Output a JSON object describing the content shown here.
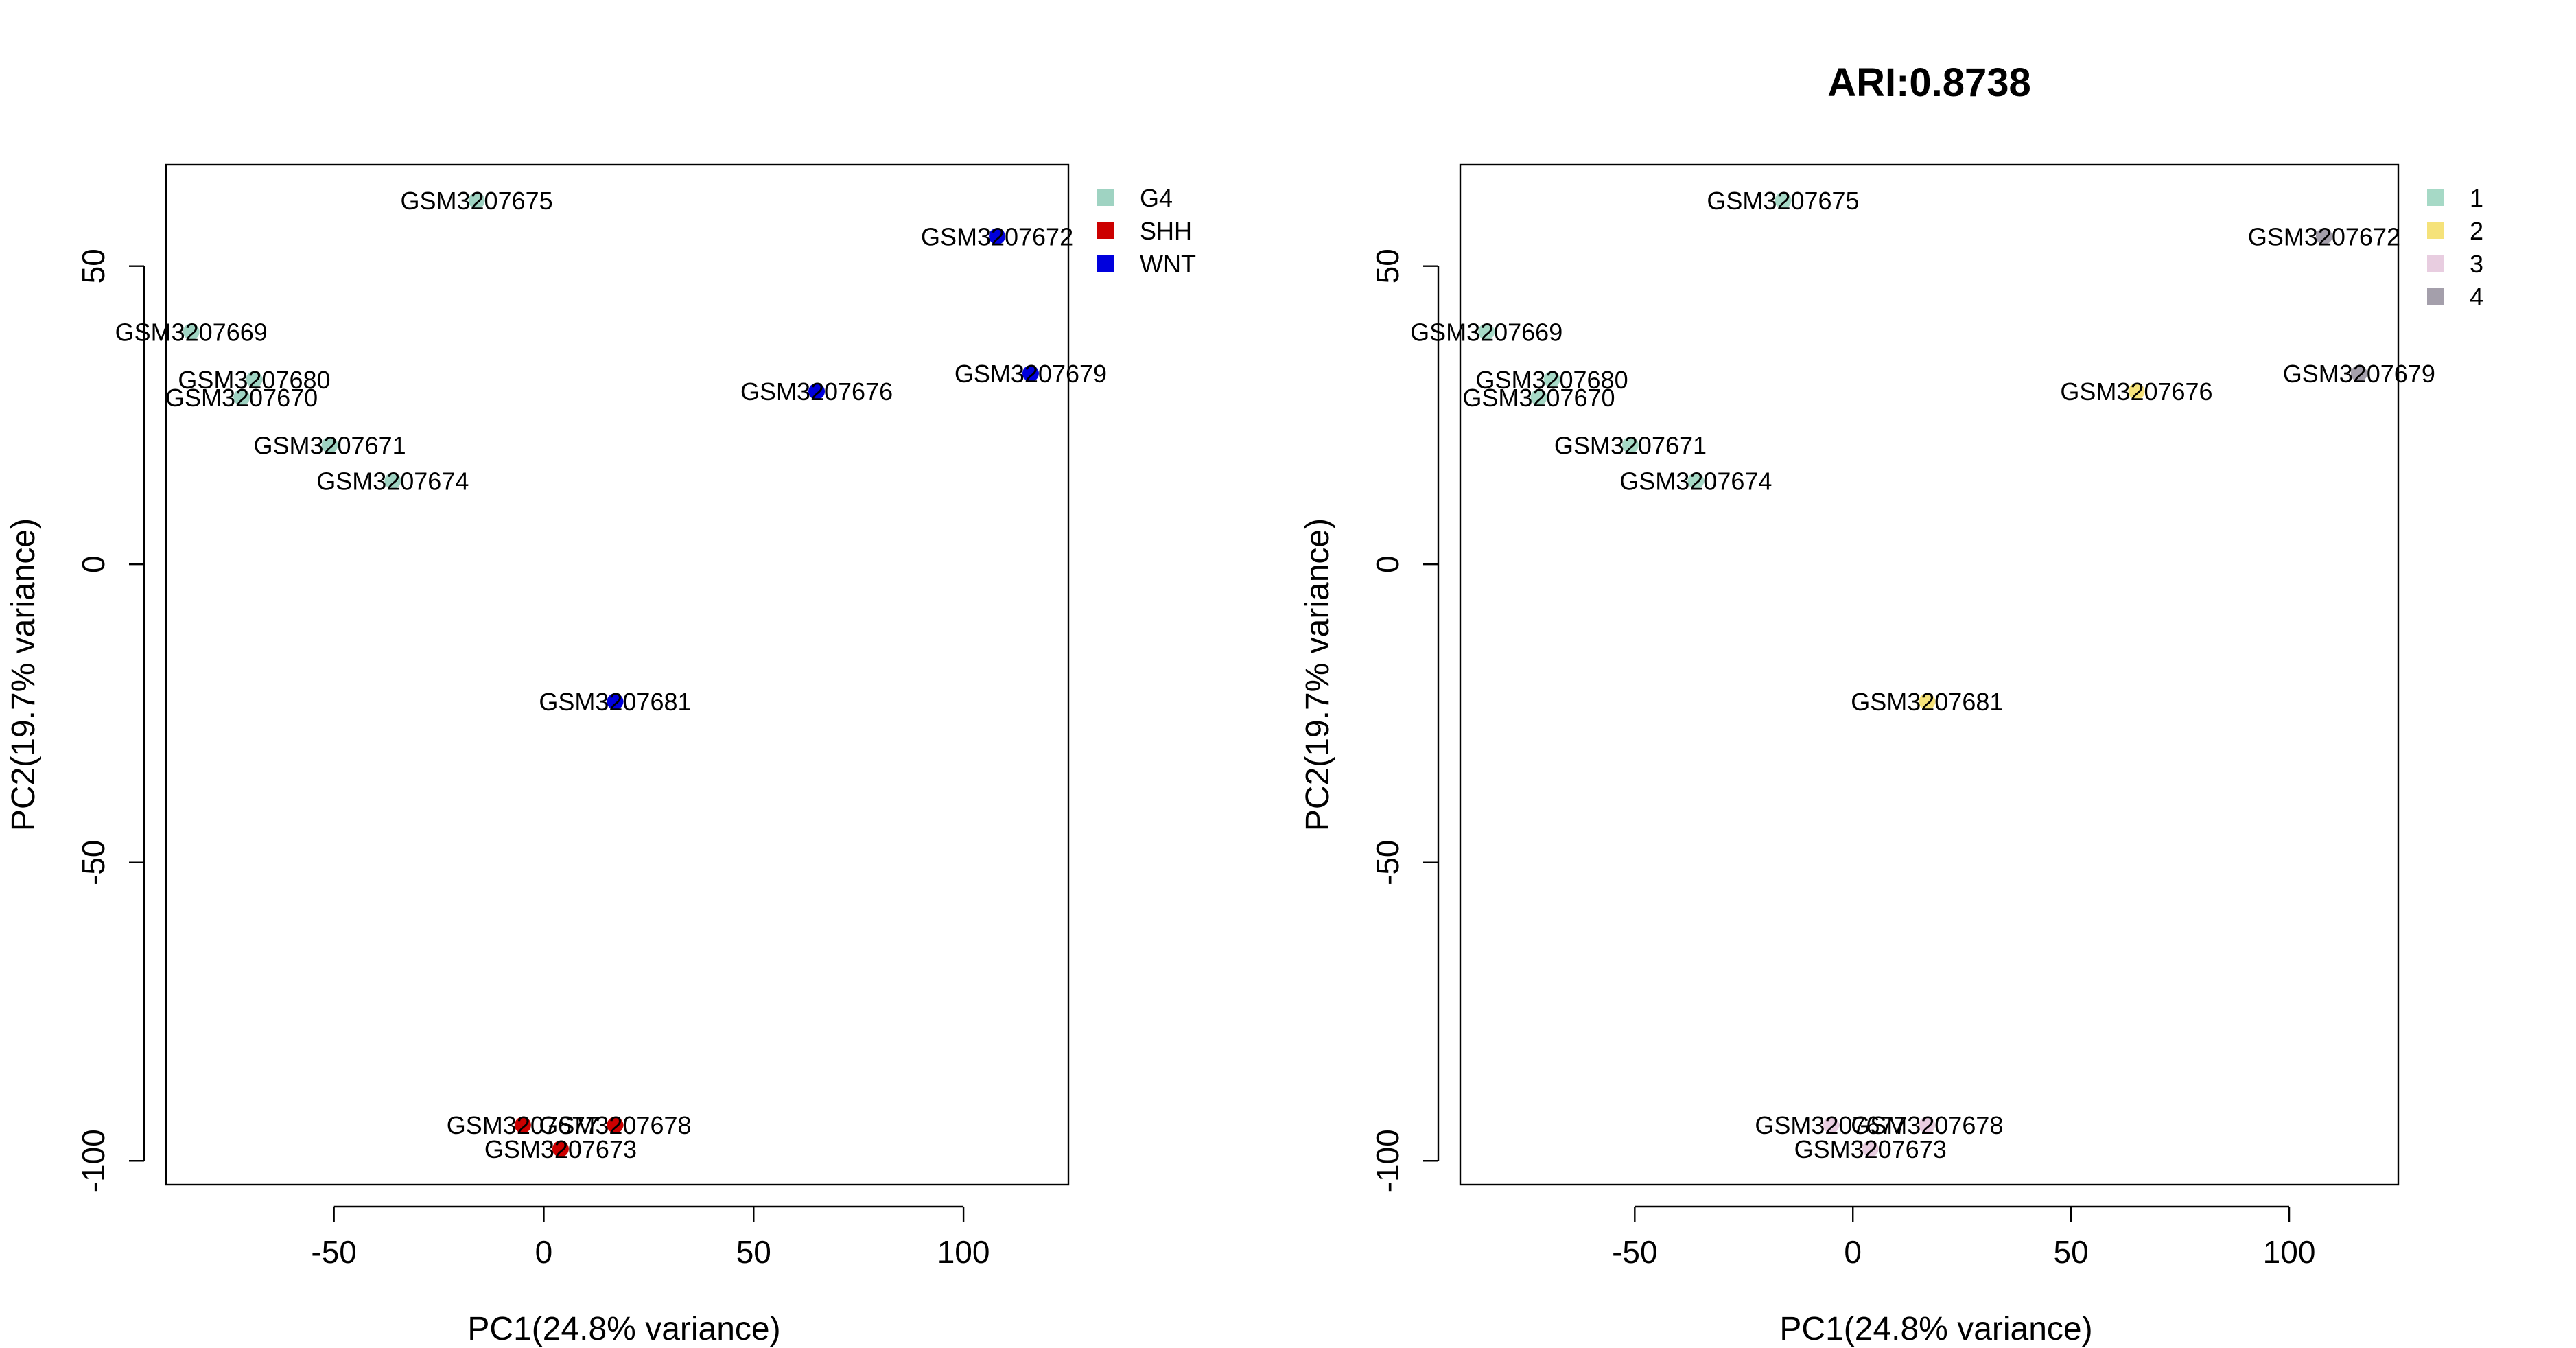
{
  "chart_data": [
    {
      "type": "scatter",
      "title": "",
      "xlabel": "PC1(24.8% variance)",
      "ylabel": "PC2(19.7% variance)",
      "xlim": [
        -90,
        125
      ],
      "ylim": [
        -104,
        67
      ],
      "xticks": [
        -50,
        0,
        50,
        100
      ],
      "yticks": [
        -100,
        -50,
        0,
        50
      ],
      "legend_position": "top-right outside plot",
      "legend": [
        {
          "label": "G4",
          "color": "#9fd3c2"
        },
        {
          "label": "SHH",
          "color": "#cc0000"
        },
        {
          "label": "WNT",
          "color": "#0000dd"
        }
      ],
      "points": [
        {
          "label": "GSM3207675",
          "x": -16,
          "y": 61,
          "group": "G4"
        },
        {
          "label": "GSM3207672",
          "x": 108,
          "y": 55,
          "group": "WNT"
        },
        {
          "label": "GSM3207669",
          "x": -84,
          "y": 39,
          "group": "G4"
        },
        {
          "label": "GSM3207679",
          "x": 116,
          "y": 32,
          "group": "WNT"
        },
        {
          "label": "GSM3207680",
          "x": -69,
          "y": 31,
          "group": "G4"
        },
        {
          "label": "GSM3207676",
          "x": 65,
          "y": 29,
          "group": "WNT"
        },
        {
          "label": "GSM3207670",
          "x": -72,
          "y": 28,
          "group": "G4"
        },
        {
          "label": "GSM3207671",
          "x": -51,
          "y": 20,
          "group": "G4"
        },
        {
          "label": "GSM3207674",
          "x": -36,
          "y": 14,
          "group": "G4"
        },
        {
          "label": "GSM3207681",
          "x": 17,
          "y": -23,
          "group": "WNT"
        },
        {
          "label": "GSM3207678",
          "x": 17,
          "y": -94,
          "group": "SHH"
        },
        {
          "label": "GSM3207677",
          "x": -5,
          "y": -94,
          "group": "SHH"
        },
        {
          "label": "GSM3207673",
          "x": 4,
          "y": -98,
          "group": "SHH"
        }
      ]
    },
    {
      "type": "scatter",
      "title": "ARI:0.8738",
      "xlabel": "PC1(24.8% variance)",
      "ylabel": "PC2(19.7% variance)",
      "xlim": [
        -90,
        125
      ],
      "ylim": [
        -104,
        67
      ],
      "xticks": [
        -50,
        0,
        50,
        100
      ],
      "yticks": [
        -100,
        -50,
        0,
        50
      ],
      "legend_position": "top-right outside plot",
      "legend": [
        {
          "label": "1",
          "color": "#a6d9c6"
        },
        {
          "label": "2",
          "color": "#f5e27a"
        },
        {
          "label": "3",
          "color": "#e8cde0"
        },
        {
          "label": "4",
          "color": "#a49fab"
        }
      ],
      "points": [
        {
          "label": "GSM3207675",
          "x": -16,
          "y": 61,
          "group": "1"
        },
        {
          "label": "GSM3207672",
          "x": 108,
          "y": 55,
          "group": "4"
        },
        {
          "label": "GSM3207669",
          "x": -84,
          "y": 39,
          "group": "1"
        },
        {
          "label": "GSM3207679",
          "x": 116,
          "y": 32,
          "group": "4"
        },
        {
          "label": "GSM3207680",
          "x": -69,
          "y": 31,
          "group": "1"
        },
        {
          "label": "GSM3207676",
          "x": 65,
          "y": 29,
          "group": "2"
        },
        {
          "label": "GSM3207670",
          "x": -72,
          "y": 28,
          "group": "1"
        },
        {
          "label": "GSM3207671",
          "x": -51,
          "y": 20,
          "group": "1"
        },
        {
          "label": "GSM3207674",
          "x": -36,
          "y": 14,
          "group": "1"
        },
        {
          "label": "GSM3207681",
          "x": 17,
          "y": -23,
          "group": "2"
        },
        {
          "label": "GSM3207678",
          "x": 17,
          "y": -94,
          "group": "3"
        },
        {
          "label": "GSM3207677",
          "x": -5,
          "y": -94,
          "group": "3"
        },
        {
          "label": "GSM3207673",
          "x": 4,
          "y": -98,
          "group": "3"
        }
      ]
    }
  ]
}
